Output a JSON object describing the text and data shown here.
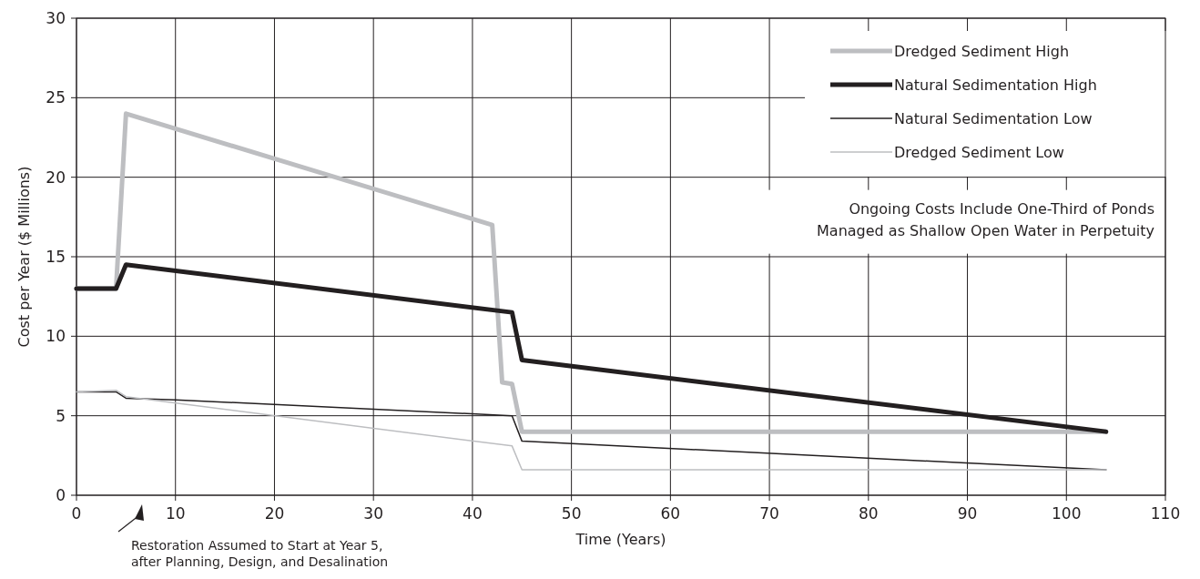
{
  "chart_data": {
    "type": "line",
    "xlabel": "Time (Years)",
    "ylabel": "Cost per Year ($ Millions)",
    "xlim": [
      0,
      110
    ],
    "xticks": [
      0,
      10,
      20,
      30,
      40,
      50,
      60,
      70,
      80,
      90,
      100,
      110
    ],
    "ylim": [
      0,
      30
    ],
    "yticks": [
      0,
      5,
      10,
      15,
      20,
      25,
      30
    ],
    "grid": true,
    "legend": "top right",
    "marker": "none",
    "line_style": "solid",
    "series": [
      {
        "name": "Dredged Sediment High",
        "color": "#bdbec1",
        "x": [
          0,
          4,
          5,
          42,
          43,
          44,
          45,
          104
        ],
        "values": [
          13,
          13,
          24,
          17,
          7.1,
          7,
          4,
          4
        ]
      },
      {
        "name": "Natural Sedimentation High",
        "color": "#231f20",
        "x": [
          0,
          4,
          5,
          44,
          45,
          104
        ],
        "values": [
          13,
          13,
          14.5,
          11.5,
          8.5,
          4
        ]
      },
      {
        "name": "Natural Sedimentation Low",
        "color": "#231f20",
        "x": [
          0,
          4,
          5,
          10,
          44,
          45,
          104
        ],
        "values": [
          6.5,
          6.5,
          6.1,
          6,
          5,
          3.4,
          1.6
        ]
      },
      {
        "name": "Dredged Sediment Low",
        "color": "#bdbec1",
        "x": [
          0,
          4,
          5,
          44,
          45,
          104
        ],
        "values": [
          6.5,
          6.6,
          6.2,
          3.1,
          1.6,
          1.6
        ]
      }
    ],
    "annotations": [
      "Ongoing Costs Include One-Third of Ponds Managed as Shallow Open Water in Perpetuity",
      "Restoration Assumed to Start at Year 5, after Planning, Design, and Desalination"
    ]
  }
}
